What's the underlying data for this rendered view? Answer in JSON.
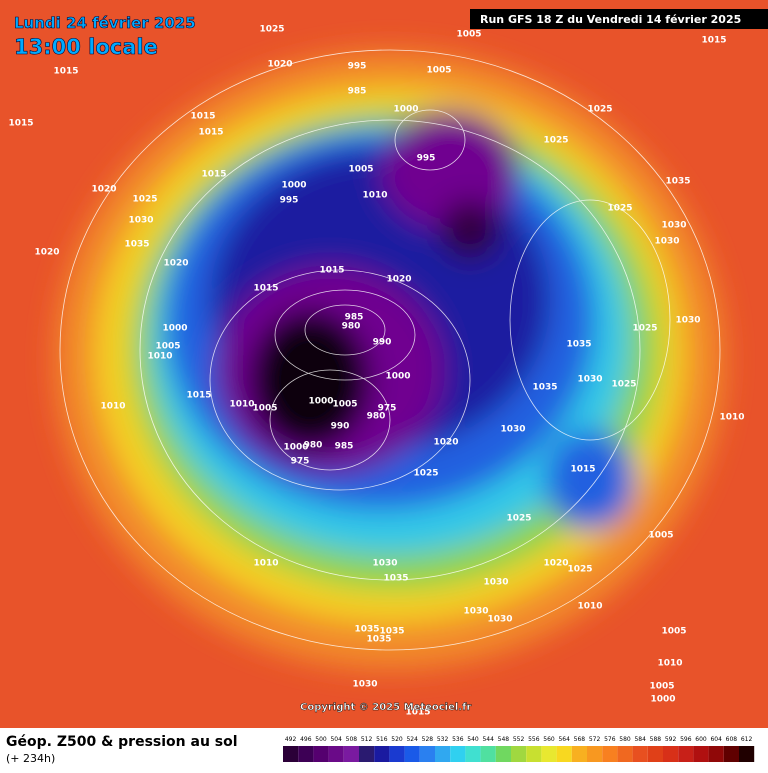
{
  "header": {
    "date": "Lundi 24 février 2025",
    "time": "13:00 locale",
    "run": "Run GFS 18 Z du Vendredi 14 février 2025"
  },
  "copyright": "Copyright © 2025 Meteociel.fr",
  "footer": {
    "title": "Géop. Z500 & pression au sol",
    "lead": "(+ 234h)"
  },
  "colorbar": {
    "labels": [
      492,
      496,
      500,
      504,
      508,
      512,
      516,
      520,
      524,
      528,
      532,
      536,
      540,
      544,
      548,
      552,
      556,
      560,
      564,
      568,
      572,
      576,
      580,
      584,
      588,
      592,
      596,
      600,
      604,
      608,
      612
    ],
    "colors": [
      "#2b0038",
      "#3d0055",
      "#55006f",
      "#6a0a88",
      "#7a1aa0",
      "#2a1a70",
      "#1a1aa0",
      "#1a3ad0",
      "#1a5ae8",
      "#2a80f0",
      "#30a8f0",
      "#30d0f0",
      "#40e0d0",
      "#50e0a0",
      "#70d860",
      "#a0d840",
      "#c8e030",
      "#e8e830",
      "#f8d820",
      "#f8b020",
      "#f89820",
      "#f88020",
      "#f06820",
      "#e85020",
      "#e04018",
      "#d83018",
      "#c82018",
      "#b01010",
      "#900808",
      "#600000",
      "#200000"
    ]
  },
  "isobar_labels": [
    "1025",
    "1005",
    "1015",
    "1015",
    "1020",
    "995",
    "985",
    "1005",
    "1000",
    "1025",
    "1015",
    "1015",
    "1015",
    "1025",
    "995",
    "1005",
    "1015",
    "1000",
    "995",
    "1010",
    "1035",
    "1020",
    "1025",
    "1025",
    "1030",
    "1030",
    "1035",
    "1030",
    "1020",
    "1020",
    "1015",
    "1020",
    "1015",
    "1000",
    "1005",
    "1010",
    "985",
    "980",
    "990",
    "1025",
    "1030",
    "1035",
    "1030",
    "1000",
    "1025",
    "1035",
    "1015",
    "1010",
    "1005",
    "1000",
    "1005",
    "975",
    "980",
    "1010",
    "990",
    "1030",
    "1020",
    "1000",
    "980",
    "985",
    "975",
    "1015",
    "1025",
    "1025",
    "1005",
    "1010",
    "1020",
    "1030",
    "1025",
    "1035",
    "1030",
    "1010",
    "1030",
    "1030",
    "1035",
    "1035",
    "1035",
    "1005",
    "1010",
    "1030",
    "1015",
    "1005",
    "1000",
    "1010"
  ]
}
